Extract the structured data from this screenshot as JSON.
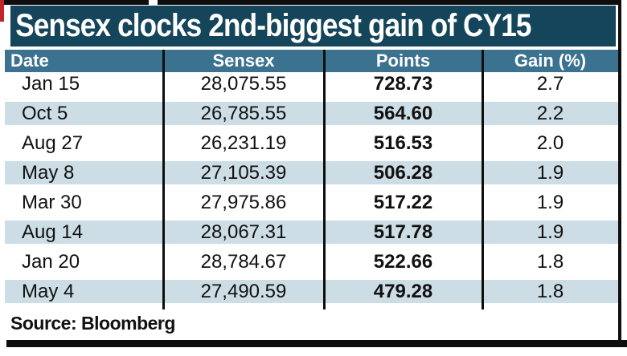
{
  "title": "Sensex clocks 2nd-biggest gain of CY15",
  "source": "Source: Bloomberg",
  "colors": {
    "title_bar": "#14455b",
    "header_row": "#3b7290",
    "row_alt": "#ccdde5",
    "rule_black": "#0e0e0e",
    "red_sliver": "#c2262c",
    "text_light": "#ffffff",
    "text_dark": "#111111"
  },
  "table": {
    "columns": [
      "Date",
      "Sensex",
      "Points",
      "Gain (%)"
    ],
    "rows": [
      {
        "date": "Jan 15",
        "sensex": "28,075.55",
        "points": "728.73",
        "gain": "2.7"
      },
      {
        "date": "Oct 5",
        "sensex": "26,785.55",
        "points": "564.60",
        "gain": "2.2"
      },
      {
        "date": "Aug 27",
        "sensex": "26,231.19",
        "points": "516.53",
        "gain": "2.0"
      },
      {
        "date": "May 8",
        "sensex": "27,105.39",
        "points": "506.28",
        "gain": "1.9"
      },
      {
        "date": "Mar 30",
        "sensex": "27,975.86",
        "points": "517.22",
        "gain": "1.9"
      },
      {
        "date": "Aug 14",
        "sensex": "28,067.31",
        "points": "517.78",
        "gain": "1.9"
      },
      {
        "date": "Jan 20",
        "sensex": "28,784.67",
        "points": "522.66",
        "gain": "1.8"
      },
      {
        "date": "May 4",
        "sensex": "27,490.59",
        "points": "479.28",
        "gain": "1.8"
      }
    ]
  },
  "chart_data": {
    "type": "table",
    "title": "Sensex clocks 2nd-biggest gain of CY15",
    "columns": [
      "Date",
      "Sensex",
      "Points",
      "Gain (%)"
    ],
    "dates": [
      "Jan 15",
      "Oct 5",
      "Aug 27",
      "May 8",
      "Mar 30",
      "Aug 14",
      "Jan 20",
      "May 4"
    ],
    "sensex": [
      28075.55,
      26785.55,
      26231.19,
      27105.39,
      27975.86,
      28067.31,
      28784.67,
      27490.59
    ],
    "points": [
      728.73,
      564.6,
      516.53,
      506.28,
      517.22,
      517.78,
      522.66,
      479.28
    ],
    "gain_pct": [
      2.7,
      2.2,
      2.0,
      1.9,
      1.9,
      1.9,
      1.8,
      1.8
    ],
    "source": "Source: Bloomberg"
  }
}
